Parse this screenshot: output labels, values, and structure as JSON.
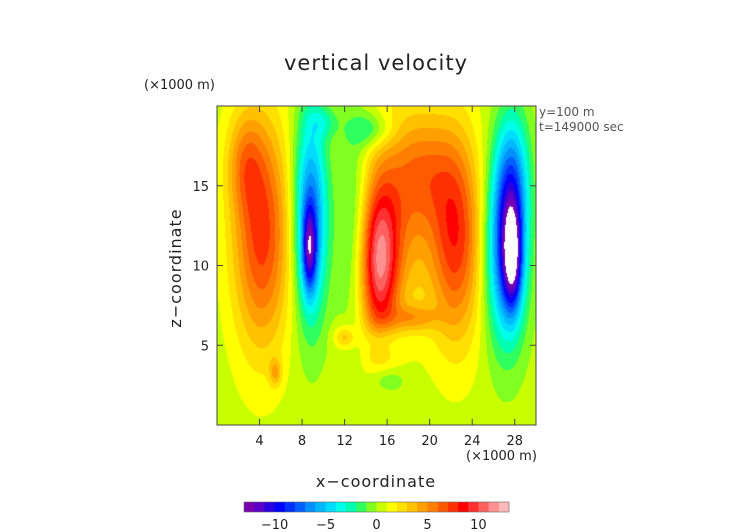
{
  "chart_data": {
    "type": "heatmap",
    "title": "vertical velocity",
    "xlabel": "x−coordinate",
    "ylabel": "z−coordinate",
    "x_unit": "(×1000 m)",
    "y_unit": "(×1000 m)",
    "xlim": [
      0,
      30
    ],
    "ylim": [
      0,
      20
    ],
    "x_ticks": [
      {
        "value": 4,
        "label": "4"
      },
      {
        "value": 8,
        "label": "8"
      },
      {
        "value": 12,
        "label": "12"
      },
      {
        "value": 16,
        "label": "16"
      },
      {
        "value": 20,
        "label": "20"
      },
      {
        "value": 24,
        "label": "24"
      },
      {
        "value": 28,
        "label": "28"
      }
    ],
    "y_ticks": [
      {
        "value": 5,
        "label": "5"
      },
      {
        "value": 10,
        "label": "10"
      },
      {
        "value": 15,
        "label": "15"
      }
    ],
    "annotations": [
      "y=100 m",
      "t=149000 sec"
    ],
    "colorbar": {
      "range": [
        -13,
        13
      ],
      "ticks": [
        {
          "value": -10,
          "label": "−10"
        },
        {
          "value": -5,
          "label": "−5"
        },
        {
          "value": 0,
          "label": "0"
        },
        {
          "value": 5,
          "label": "5"
        },
        {
          "value": 10,
          "label": "10"
        }
      ],
      "colors": [
        "#7a00b0",
        "#5a00c8",
        "#2a00e0",
        "#0000ff",
        "#0030ff",
        "#0060ff",
        "#0090ff",
        "#00b8ff",
        "#00dcff",
        "#00ffe8",
        "#00ffb0",
        "#30ff60",
        "#80ff20",
        "#c8ff00",
        "#ffff00",
        "#ffe000",
        "#ffc000",
        "#ffa000",
        "#ff8000",
        "#ff5a00",
        "#ff3000",
        "#ff0000",
        "#ff3030",
        "#ff6060",
        "#ff9090",
        "#ffb8b8"
      ]
    },
    "features": [
      {
        "x": 4.2,
        "z": 12,
        "sx": 1.9,
        "sz": 5.0,
        "value": 7
      },
      {
        "x": 2.6,
        "z": 16.5,
        "sx": 1.2,
        "sz": 2.2,
        "value": 3
      },
      {
        "x": 8.8,
        "z": 13.0,
        "sx": 1.1,
        "sz": 4.5,
        "value": -8
      },
      {
        "x": 8.7,
        "z": 11.0,
        "sx": 0.45,
        "sz": 1.8,
        "value": -7
      },
      {
        "x": 13.0,
        "z": 12.5,
        "sx": 1.2,
        "sz": 4.5,
        "value": -3
      },
      {
        "x": 15.2,
        "z": 10.0,
        "sx": 1.3,
        "sz": 3.5,
        "value": 9
      },
      {
        "x": 17.0,
        "z": 13.5,
        "sx": 2.6,
        "sz": 4.5,
        "value": 4
      },
      {
        "x": 19.5,
        "z": 16.0,
        "sx": 2.0,
        "sz": 2.5,
        "value": 3
      },
      {
        "x": 22.5,
        "z": 11.8,
        "sx": 1.7,
        "sz": 4.5,
        "value": 7
      },
      {
        "x": 27.2,
        "z": 11.0,
        "sx": 1.3,
        "sz": 4.0,
        "value": -9
      },
      {
        "x": 27.8,
        "z": 15.5,
        "sx": 1.1,
        "sz": 3.0,
        "value": -5
      },
      {
        "x": 27.8,
        "z": 10.5,
        "sx": 0.6,
        "sz": 2.2,
        "value": -8
      },
      {
        "x": 14.5,
        "z": 18.5,
        "sx": 1.5,
        "sz": 0.8,
        "value": -3
      },
      {
        "x": 10.0,
        "z": 19.0,
        "sx": 1.0,
        "sz": 0.7,
        "value": -2
      },
      {
        "x": 15.5,
        "z": 5.3,
        "sx": 1.2,
        "sz": 0.7,
        "value": -2
      },
      {
        "x": 12.0,
        "z": 5.5,
        "sx": 0.7,
        "sz": 0.5,
        "value": 3
      },
      {
        "x": 5.5,
        "z": 3.3,
        "sx": 0.4,
        "sz": 0.6,
        "value": 3
      },
      {
        "x": 16.0,
        "z": 2.8,
        "sx": 1.2,
        "sz": 0.6,
        "value": -2
      },
      {
        "x": 18.5,
        "z": 6.7,
        "sx": 1.5,
        "sz": 0.6,
        "value": 3
      }
    ]
  }
}
